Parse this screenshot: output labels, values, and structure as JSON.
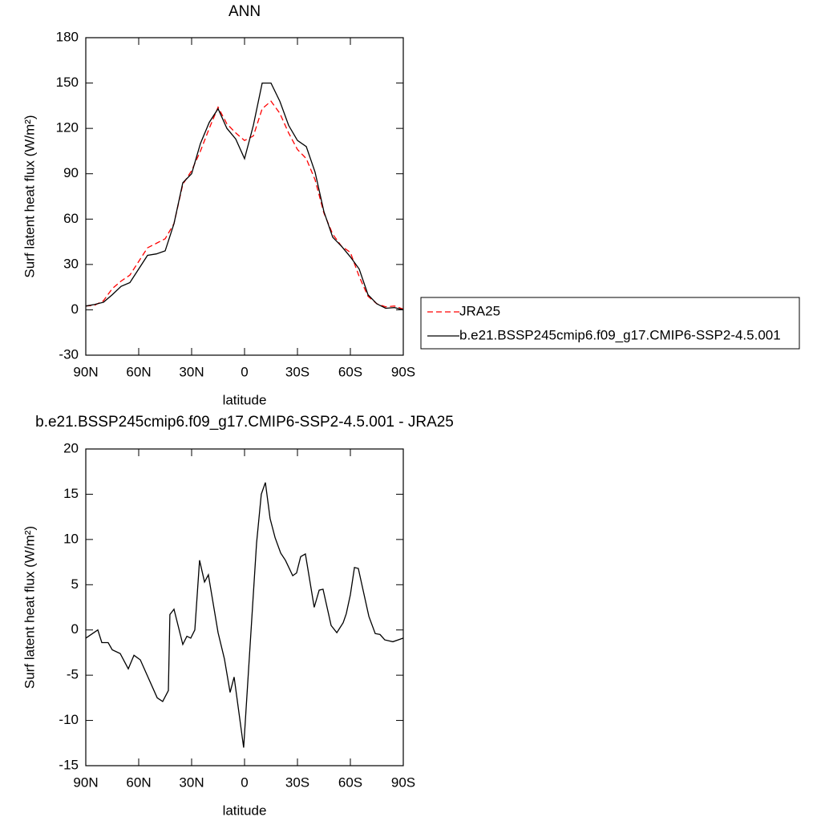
{
  "chart_data": [
    {
      "type": "line",
      "title": "ANN",
      "xlabel": "latitude",
      "ylabel": "Surf latent heat flux (W/m²)",
      "x": [
        90,
        85,
        80,
        75,
        70,
        65,
        60,
        55,
        50,
        45,
        40,
        35,
        30,
        25,
        20,
        15,
        10,
        5,
        0,
        -5,
        -10,
        -15,
        -20,
        -25,
        -30,
        -35,
        -40,
        -45,
        -50,
        -55,
        -60,
        -65,
        -70,
        -75,
        -80,
        -85,
        -90
      ],
      "series": [
        {
          "name": "JRA25",
          "color": "#ff0000",
          "linestyle": "dashed",
          "values": [
            2.5,
            3,
            6,
            14,
            19,
            23,
            32,
            41,
            44,
            47,
            57,
            83,
            92,
            105,
            120,
            134,
            123,
            117,
            112,
            115,
            133,
            138,
            130,
            117,
            106,
            100,
            86,
            64,
            50,
            42,
            38,
            22,
            9,
            4,
            2,
            2.5,
            0.5
          ]
        },
        {
          "name": "b.e21.BSSP245cmip6.f09_g17.CMIP6-SSP2-4.5.001",
          "color": "#000000",
          "linestyle": "solid",
          "values": [
            2.5,
            3.5,
            5,
            10,
            15.5,
            18,
            27,
            36,
            37,
            39,
            57,
            84,
            90,
            110,
            124,
            133,
            120,
            113,
            100,
            122,
            150,
            150,
            138,
            122,
            112,
            108,
            91,
            65,
            48,
            42,
            35,
            27,
            10,
            4,
            1,
            1.5,
            0
          ]
        }
      ],
      "xlim": [
        90,
        -90
      ],
      "xticks": [
        {
          "value": 90,
          "label": "90N"
        },
        {
          "value": 60,
          "label": "60N"
        },
        {
          "value": 30,
          "label": "30N"
        },
        0,
        {
          "value": -30,
          "label": "30S"
        },
        {
          "value": -60,
          "label": "60S"
        },
        {
          "value": -90,
          "label": "90S"
        }
      ],
      "ylim": [
        -30,
        180
      ],
      "yticks": [
        -30,
        0,
        30,
        60,
        90,
        120,
        150,
        180
      ],
      "legend": "right"
    },
    {
      "type": "line",
      "title": "b.e21.BSSP245cmip6.f09_g17.CMIP6-SSP2-4.5.001 - JRA25",
      "xlabel": "latitude",
      "ylabel": "Surf latent heat flux (W/m²)",
      "x": [
        90,
        83.2,
        80.9,
        77.3,
        75,
        70.5,
        65.9,
        62.7,
        59.1,
        49.5,
        46.4,
        43.2,
        42.3,
        40,
        35,
        32.7,
        30.5,
        28.2,
        25.5,
        22.7,
        20.5,
        15,
        11.4,
        8.2,
        5.9,
        0.5,
        -6.8,
        -9.5,
        -11.8,
        -14.5,
        -17.3,
        -20.5,
        -23.2,
        -27.3,
        -29.5,
        -31.8,
        -34.5,
        -39.5,
        -42.3,
        -44.5,
        -49.1,
        -52.3,
        -55.9,
        -57.7,
        -60,
        -62.3,
        -64.5,
        -70.5,
        -74.1,
        -76.8,
        -79.5,
        -84.1,
        -90
      ],
      "series": [
        {
          "color": "#000000",
          "linestyle": "solid",
          "values": [
            -0.9,
            0,
            -1.4,
            -1.4,
            -2.2,
            -2.6,
            -4.3,
            -2.8,
            -3.3,
            -7.5,
            -7.9,
            -6.7,
            1.7,
            2.3,
            -1.6,
            -0.7,
            -0.9,
            0,
            7.7,
            5.3,
            6.1,
            -0.3,
            -3.2,
            -6.9,
            -5.2,
            -13,
            9.6,
            15,
            16.3,
            12.3,
            10.2,
            8.5,
            7.7,
            6,
            6.3,
            8.1,
            8.4,
            2.5,
            4.4,
            4.5,
            0.5,
            -0.3,
            0.8,
            1.8,
            3.9,
            6.9,
            6.8,
            1.5,
            -0.4,
            -0.5,
            -1.1,
            -1.3,
            -0.9
          ]
        }
      ],
      "xlim": [
        90,
        -90
      ],
      "xticks": [
        {
          "value": 90,
          "label": "90N"
        },
        {
          "value": 60,
          "label": "60N"
        },
        {
          "value": 30,
          "label": "30N"
        },
        0,
        {
          "value": -30,
          "label": "30S"
        },
        {
          "value": -60,
          "label": "60S"
        },
        {
          "value": -90,
          "label": "90S"
        }
      ],
      "ylim": [
        -15,
        20
      ],
      "yticks": [
        -15,
        -10,
        -5,
        0,
        5,
        10,
        15,
        20
      ]
    }
  ]
}
